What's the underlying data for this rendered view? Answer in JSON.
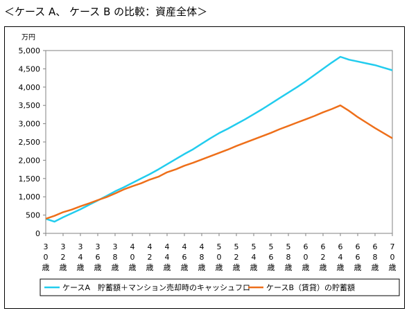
{
  "page_title": "＜ケース A、 ケース B の比較：資産全体＞",
  "chart_data": {
    "type": "line",
    "y_unit": "万円",
    "ylim": [
      0,
      5000
    ],
    "yticks": [
      0,
      500,
      1000,
      1500,
      2000,
      2500,
      3000,
      3500,
      4000,
      4500,
      5000
    ],
    "ytick_labels": [
      "0",
      "500",
      "1,000",
      "1,500",
      "2,000",
      "2,500",
      "3,000",
      "3,500",
      "4,000",
      "4,500",
      "5,000"
    ],
    "x": [
      30,
      31,
      32,
      33,
      34,
      35,
      36,
      37,
      38,
      39,
      40,
      41,
      42,
      43,
      44,
      45,
      46,
      47,
      48,
      49,
      50,
      51,
      52,
      53,
      54,
      55,
      56,
      57,
      58,
      59,
      60,
      61,
      62,
      63,
      64,
      65,
      66,
      67,
      68,
      69,
      70
    ],
    "xtick_values": [
      30,
      32,
      34,
      36,
      38,
      40,
      42,
      44,
      46,
      48,
      50,
      52,
      54,
      56,
      58,
      60,
      62,
      64,
      66,
      68,
      70
    ],
    "xtick_labels": [
      [
        "3",
        "0",
        "歳"
      ],
      [
        "3",
        "2",
        "歳"
      ],
      [
        "3",
        "4",
        "歳"
      ],
      [
        "3",
        "6",
        "歳"
      ],
      [
        "3",
        "8",
        "歳"
      ],
      [
        "4",
        "0",
        "歳"
      ],
      [
        "4",
        "2",
        "歳"
      ],
      [
        "4",
        "4",
        "歳"
      ],
      [
        "4",
        "6",
        "歳"
      ],
      [
        "4",
        "8",
        "歳"
      ],
      [
        "5",
        "0",
        "歳"
      ],
      [
        "5",
        "2",
        "歳"
      ],
      [
        "5",
        "4",
        "歳"
      ],
      [
        "5",
        "6",
        "歳"
      ],
      [
        "5",
        "8",
        "歳"
      ],
      [
        "6",
        "0",
        "歳"
      ],
      [
        "6",
        "2",
        "歳"
      ],
      [
        "6",
        "4",
        "歳"
      ],
      [
        "6",
        "6",
        "歳"
      ],
      [
        "6",
        "8",
        "歳"
      ],
      [
        "7",
        "0",
        "歳"
      ]
    ],
    "grid": false,
    "legend_position": "bottom",
    "series": [
      {
        "name": "ケースA　貯蓄額＋マンション売却時のキャッシュフロー",
        "color": "#22ccee",
        "values": [
          400,
          320,
          440,
          550,
          660,
          780,
          900,
          1020,
          1150,
          1260,
          1380,
          1500,
          1620,
          1750,
          1890,
          2030,
          2170,
          2300,
          2450,
          2600,
          2740,
          2860,
          2990,
          3120,
          3260,
          3400,
          3550,
          3700,
          3850,
          4000,
          4160,
          4330,
          4500,
          4670,
          4830,
          4750,
          4700,
          4650,
          4600,
          4530,
          4460
        ]
      },
      {
        "name": "ケースB（賃貸）の貯蓄額",
        "color": "#ee6f1a",
        "values": [
          400,
          480,
          580,
          650,
          740,
          820,
          910,
          990,
          1090,
          1200,
          1290,
          1370,
          1470,
          1550,
          1670,
          1750,
          1850,
          1930,
          2020,
          2110,
          2200,
          2290,
          2390,
          2480,
          2570,
          2660,
          2750,
          2850,
          2940,
          3030,
          3120,
          3210,
          3310,
          3400,
          3500,
          3350,
          3180,
          3030,
          2880,
          2740,
          2600
        ]
      }
    ]
  }
}
